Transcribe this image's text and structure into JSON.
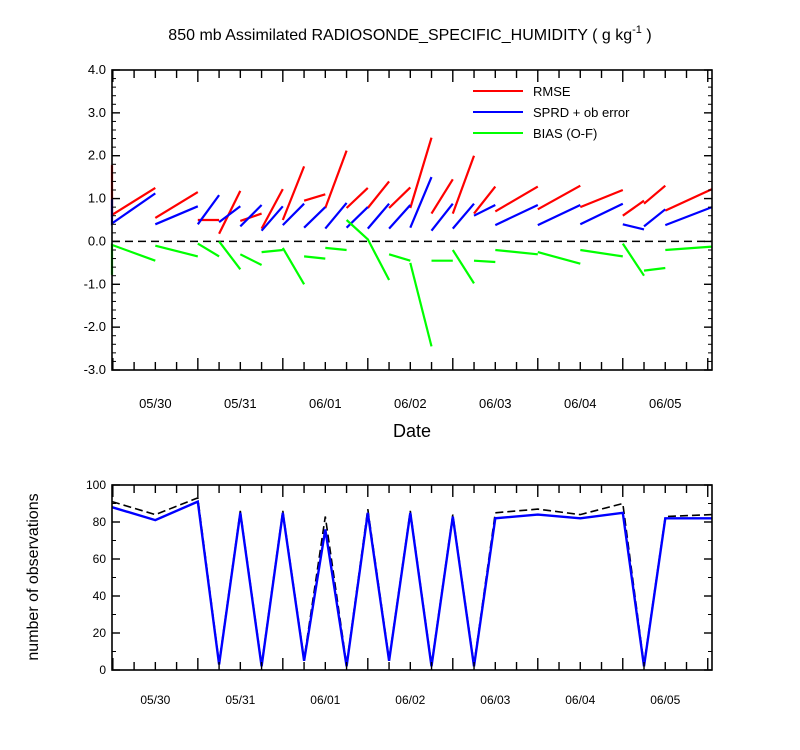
{
  "chart_data": [
    {
      "type": "line",
      "title": "850 mb Assimilated RADIOSONDE_SPECIFIC_HUMIDITY ( g kg",
      "title_unit_exponent": "-1",
      "title_close": " )",
      "xlabel": "Date",
      "ylabel": "",
      "x_ticks": [
        "05/30",
        "05/31",
        "06/01",
        "06/02",
        "06/03",
        "06/04",
        "06/05"
      ],
      "x_tick_day_values": [
        1.5,
        2.5,
        3.5,
        4.5,
        5.5,
        6.5,
        7.5
      ],
      "xlim_days": [
        0.99,
        8.05
      ],
      "ylim": [
        -3.0,
        4.0
      ],
      "y_ticks": [
        -3.0,
        -2.0,
        -1.0,
        0.0,
        1.0,
        2.0,
        3.0,
        4.0
      ],
      "y_tick_labels": [
        "-3.0",
        "-2.0",
        "-1.0",
        "0.0",
        "1.0",
        "2.0",
        "3.0",
        "4.0"
      ],
      "zero_line": true,
      "legend_position": "top-right",
      "series": [
        {
          "name": "RMSE",
          "color": "#ff0000",
          "segments": [
            [
              [
                0.99,
                1.78
              ],
              [
                0.99,
                0.62
              ],
              [
                1.5,
                1.25
              ]
            ],
            [
              [
                1.5,
                0.55
              ],
              [
                2.0,
                1.15
              ]
            ],
            [
              [
                2.0,
                0.5
              ],
              [
                2.25,
                0.5
              ]
            ],
            [
              [
                2.25,
                0.18
              ],
              [
                2.5,
                1.18
              ]
            ],
            [
              [
                2.5,
                0.48
              ],
              [
                2.75,
                0.65
              ]
            ],
            [
              [
                2.75,
                0.3
              ],
              [
                3.0,
                1.22
              ]
            ],
            [
              [
                3.0,
                0.5
              ],
              [
                3.25,
                1.75
              ]
            ],
            [
              [
                3.25,
                0.95
              ],
              [
                3.5,
                1.1
              ]
            ],
            [
              [
                3.5,
                0.78
              ],
              [
                3.75,
                2.12
              ]
            ],
            [
              [
                3.75,
                0.78
              ],
              [
                4.0,
                1.25
              ]
            ],
            [
              [
                4.0,
                0.78
              ],
              [
                4.25,
                1.4
              ]
            ],
            [
              [
                4.25,
                0.78
              ],
              [
                4.5,
                1.26
              ]
            ],
            [
              [
                4.5,
                0.78
              ],
              [
                4.75,
                2.42
              ]
            ],
            [
              [
                4.75,
                0.65
              ],
              [
                5.0,
                1.45
              ]
            ],
            [
              [
                5.0,
                0.65
              ],
              [
                5.25,
                2.0
              ]
            ],
            [
              [
                5.25,
                0.65
              ],
              [
                5.5,
                1.28
              ]
            ],
            [
              [
                5.5,
                0.7
              ],
              [
                6.0,
                1.28
              ]
            ],
            [
              [
                6.0,
                0.75
              ],
              [
                6.5,
                1.3
              ]
            ],
            [
              [
                6.5,
                0.8
              ],
              [
                7.0,
                1.2
              ]
            ],
            [
              [
                7.0,
                0.6
              ],
              [
                7.25,
                0.95
              ]
            ],
            [
              [
                7.25,
                0.88
              ],
              [
                7.5,
                1.3
              ]
            ],
            [
              [
                7.5,
                0.72
              ],
              [
                8.05,
                1.22
              ]
            ]
          ]
        },
        {
          "name": "SPRD + ob error",
          "color": "#0000ff",
          "segments": [
            [
              [
                0.99,
                0.98
              ],
              [
                0.99,
                0.42
              ],
              [
                1.5,
                1.12
              ]
            ],
            [
              [
                1.5,
                0.4
              ],
              [
                2.0,
                0.82
              ]
            ],
            [
              [
                2.0,
                0.4
              ],
              [
                2.25,
                1.08
              ]
            ],
            [
              [
                2.25,
                0.45
              ],
              [
                2.5,
                0.82
              ]
            ],
            [
              [
                2.5,
                0.35
              ],
              [
                2.75,
                0.85
              ]
            ],
            [
              [
                2.75,
                0.25
              ],
              [
                3.0,
                0.82
              ]
            ],
            [
              [
                3.0,
                0.38
              ],
              [
                3.25,
                0.88
              ]
            ],
            [
              [
                3.25,
                0.32
              ],
              [
                3.5,
                0.8
              ]
            ],
            [
              [
                3.5,
                0.3
              ],
              [
                3.75,
                0.9
              ]
            ],
            [
              [
                3.75,
                0.32
              ],
              [
                4.0,
                0.8
              ]
            ],
            [
              [
                4.0,
                0.3
              ],
              [
                4.25,
                0.88
              ]
            ],
            [
              [
                4.25,
                0.3
              ],
              [
                4.5,
                0.85
              ]
            ],
            [
              [
                4.5,
                0.32
              ],
              [
                4.75,
                1.5
              ]
            ],
            [
              [
                4.75,
                0.25
              ],
              [
                5.0,
                0.88
              ]
            ],
            [
              [
                5.0,
                0.3
              ],
              [
                5.25,
                0.88
              ]
            ],
            [
              [
                5.25,
                0.6
              ],
              [
                5.5,
                0.85
              ]
            ],
            [
              [
                5.5,
                0.38
              ],
              [
                6.0,
                0.85
              ]
            ],
            [
              [
                6.0,
                0.38
              ],
              [
                6.5,
                0.85
              ]
            ],
            [
              [
                6.5,
                0.4
              ],
              [
                7.0,
                0.88
              ]
            ],
            [
              [
                7.0,
                0.4
              ],
              [
                7.25,
                0.28
              ]
            ],
            [
              [
                7.25,
                0.35
              ],
              [
                7.5,
                0.75
              ]
            ],
            [
              [
                7.5,
                0.38
              ],
              [
                8.05,
                0.8
              ]
            ]
          ]
        },
        {
          "name": "BIAS (O-F)",
          "color": "#00ff00",
          "segments": [
            [
              [
                0.99,
                -0.78
              ],
              [
                0.99,
                -0.08
              ],
              [
                1.5,
                -0.45
              ]
            ],
            [
              [
                1.5,
                -0.1
              ],
              [
                2.0,
                -0.35
              ]
            ],
            [
              [
                2.0,
                -0.05
              ],
              [
                2.25,
                -0.35
              ]
            ],
            [
              [
                2.25,
                0.0
              ],
              [
                2.5,
                -0.65
              ]
            ],
            [
              [
                2.5,
                -0.3
              ],
              [
                2.75,
                -0.55
              ]
            ],
            [
              [
                2.75,
                -0.25
              ],
              [
                3.0,
                -0.2
              ]
            ],
            [
              [
                3.0,
                -0.15
              ],
              [
                3.25,
                -1.0
              ]
            ],
            [
              [
                3.25,
                -0.35
              ],
              [
                3.5,
                -0.4
              ]
            ],
            [
              [
                3.5,
                -0.15
              ],
              [
                3.75,
                -0.2
              ]
            ],
            [
              [
                3.75,
                0.5
              ],
              [
                4.0,
                0.05
              ],
              [
                4.25,
                -0.9
              ]
            ],
            [
              [
                4.25,
                -0.3
              ],
              [
                4.5,
                -0.45
              ]
            ],
            [
              [
                4.5,
                -0.5
              ],
              [
                4.75,
                -2.45
              ]
            ],
            [
              [
                4.75,
                -0.45
              ],
              [
                5.0,
                -0.45
              ]
            ],
            [
              [
                5.0,
                -0.2
              ],
              [
                5.25,
                -0.98
              ]
            ],
            [
              [
                5.25,
                -0.45
              ],
              [
                5.5,
                -0.48
              ]
            ],
            [
              [
                5.5,
                -0.2
              ],
              [
                6.0,
                -0.3
              ]
            ],
            [
              [
                6.0,
                -0.25
              ],
              [
                6.5,
                -0.52
              ]
            ],
            [
              [
                6.5,
                -0.2
              ],
              [
                7.0,
                -0.35
              ]
            ],
            [
              [
                7.0,
                -0.05
              ],
              [
                7.25,
                -0.8
              ]
            ],
            [
              [
                7.25,
                -0.68
              ],
              [
                7.5,
                -0.62
              ]
            ],
            [
              [
                7.5,
                -0.2
              ],
              [
                8.05,
                -0.12
              ]
            ]
          ]
        }
      ]
    },
    {
      "type": "line",
      "ylabel": "number of observations",
      "x_ticks": [
        "05/30",
        "05/31",
        "06/01",
        "06/02",
        "06/03",
        "06/04",
        "06/05"
      ],
      "x_tick_day_values": [
        1.5,
        2.5,
        3.5,
        4.5,
        5.5,
        6.5,
        7.5
      ],
      "xlim_days": [
        0.99,
        8.05
      ],
      "ylim": [
        0,
        100
      ],
      "y_ticks": [
        0,
        20,
        40,
        60,
        80,
        100
      ],
      "y_tick_labels": [
        "0",
        "20",
        "40",
        "60",
        "80",
        "100"
      ],
      "series": [
        {
          "color": "#0000ff",
          "x": [
            0.99,
            1.5,
            2.0,
            2.25,
            2.5,
            2.75,
            3.0,
            3.25,
            3.5,
            3.75,
            4.0,
            4.25,
            4.5,
            4.75,
            5.0,
            5.25,
            5.5,
            6.0,
            6.5,
            7.0,
            7.25,
            7.5,
            8.05
          ],
          "values": [
            88,
            81,
            91,
            3,
            85,
            2,
            85,
            5,
            76,
            2,
            85,
            5,
            85,
            2,
            83,
            2,
            82,
            84,
            82,
            85,
            2,
            82,
            82
          ]
        },
        {
          "color": "#000000",
          "dashed": true,
          "x": [
            0.99,
            1.5,
            2.0,
            2.25,
            2.5,
            2.75,
            3.0,
            3.25,
            3.5,
            3.75,
            4.0,
            4.25,
            4.5,
            4.75,
            5.0,
            5.25,
            5.5,
            6.0,
            6.5,
            7.0,
            7.25,
            7.5,
            8.05
          ],
          "values": [
            91,
            84,
            93,
            4,
            86,
            3,
            86,
            6,
            83,
            3,
            87,
            6,
            86,
            3,
            84,
            3,
            85,
            87,
            84,
            90,
            3,
            83,
            84
          ]
        }
      ]
    }
  ]
}
